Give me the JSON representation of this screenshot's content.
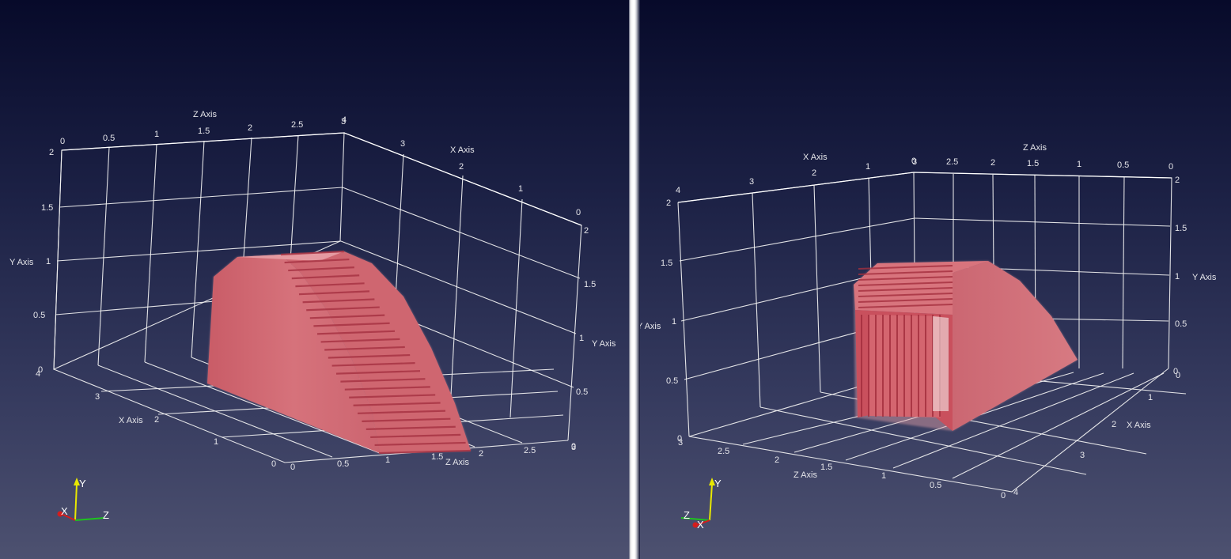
{
  "colors": {
    "surface": "#d4727a",
    "surface_dark": "#b84350",
    "grid": "#f2f2f2",
    "bg_top": "#070a2a",
    "bg_bottom": "#4d5170",
    "orient_x": "#d41d1d",
    "orient_y": "#e8e800",
    "orient_z": "#1ec41e"
  },
  "views": [
    {
      "id": "left",
      "axes": {
        "z_axis_title": "Z Axis",
        "z_ticks_top": [
          "0",
          "0.5",
          "1",
          "1.5",
          "2",
          "2.5",
          "3"
        ],
        "z_ticks_bottom": [
          "0",
          "0.5",
          "1",
          "1.5",
          "2",
          "2.5",
          "3"
        ],
        "x_axis_title": "X Axis",
        "x_ticks_top": [
          "4",
          "3",
          "2",
          "1",
          "0"
        ],
        "x_ticks_bottom": [
          "4",
          "3",
          "2",
          "1",
          "0"
        ],
        "y_axis_title": "Y Axis",
        "y_ticks_left": [
          "2",
          "1.5",
          "1",
          "0.5",
          "0"
        ],
        "y_ticks_right": [
          "2",
          "1.5",
          "1",
          "0.5",
          "0"
        ]
      },
      "orientation": {
        "x": "X",
        "y": "Y",
        "z": "Z"
      }
    },
    {
      "id": "right",
      "axes": {
        "x_axis_title": "X Axis",
        "x_ticks_top": [
          "4",
          "3",
          "2",
          "1",
          "0"
        ],
        "x_ticks_bottom": [
          "0",
          "1",
          "2",
          "3",
          "4"
        ],
        "z_axis_title": "Z Axis",
        "z_ticks_top": [
          "3",
          "2.5",
          "2",
          "1.5",
          "1",
          "0.5",
          "0"
        ],
        "z_ticks_bottom": [
          "3",
          "2.5",
          "2",
          "1.5",
          "1",
          "0.5",
          "0"
        ],
        "y_axis_title": "Y Axis",
        "y_ticks_left": [
          "2",
          "1.5",
          "1",
          "0.5",
          "0"
        ],
        "y_ticks_right": [
          "2",
          "1.5",
          "1",
          "0.5",
          "0"
        ]
      },
      "orientation": {
        "x": "X",
        "y": "Y",
        "z": "Z"
      }
    }
  ]
}
